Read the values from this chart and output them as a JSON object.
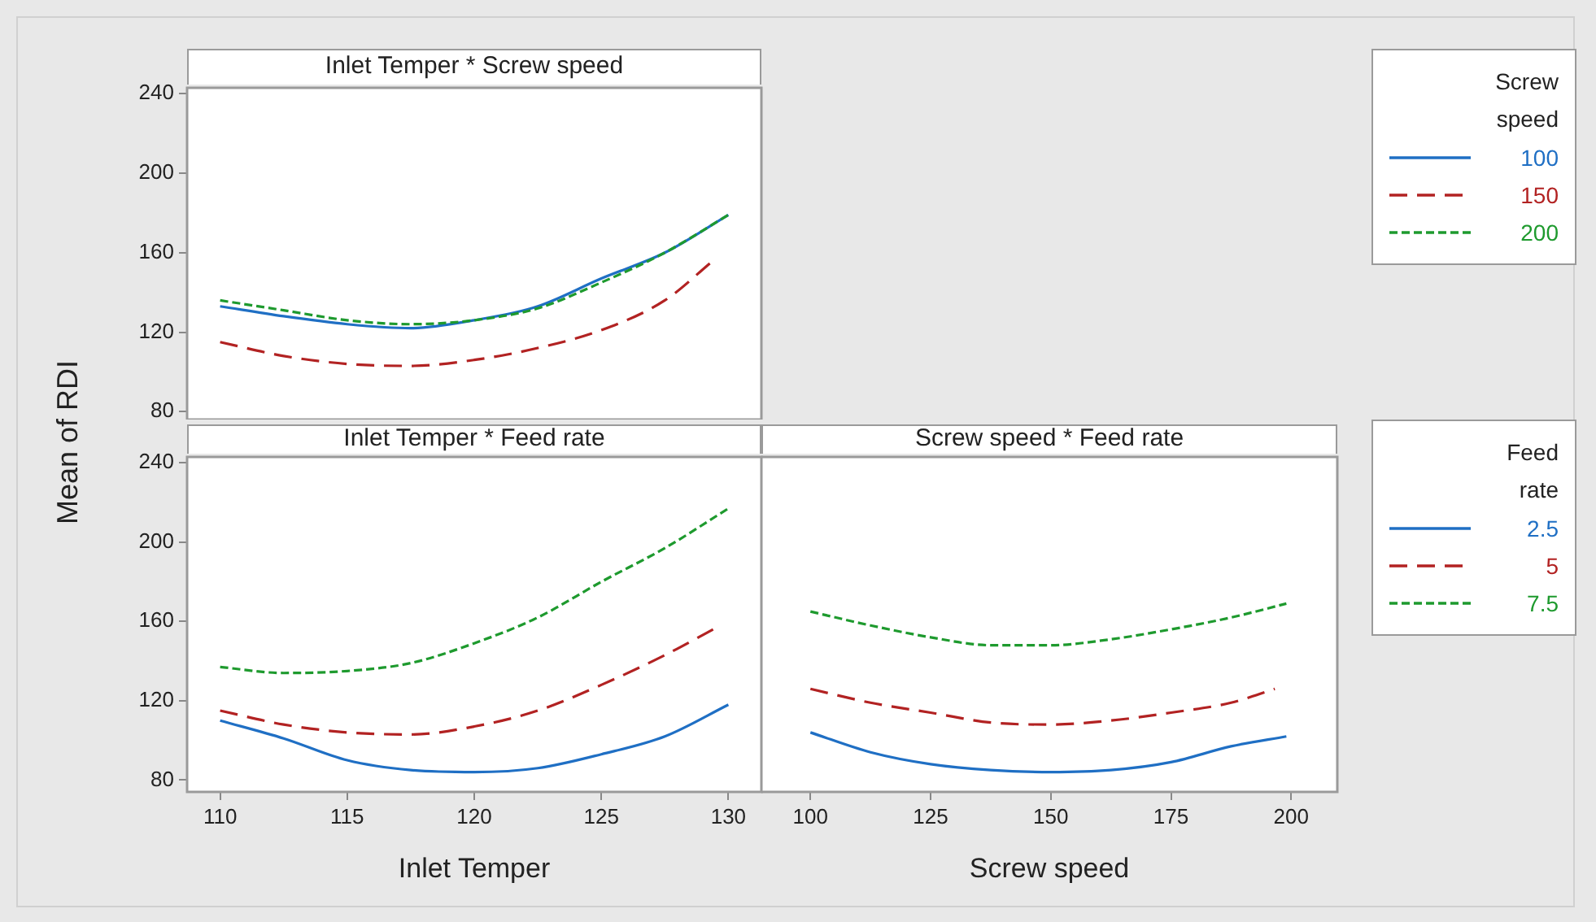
{
  "chart_data": [
    {
      "type": "line",
      "title": "Inlet Temper * Screw speed",
      "ylabel": "Mean of RDI",
      "legend_title": "Screw speed",
      "legend": "right",
      "tick_labels": "y",
      "xlim": [
        108.7,
        131.3
      ],
      "xticks": [
        110,
        115,
        120,
        125,
        130
      ],
      "ylim": [
        76,
        243
      ],
      "yticks": [
        80,
        120,
        160,
        200,
        240
      ],
      "series": [
        {
          "name": "100",
          "color": "#1f6fc4",
          "line_style": "solid",
          "x": [
            110,
            112.5,
            115,
            117.5,
            120,
            122.5,
            125,
            127.5,
            130
          ],
          "values": [
            133,
            128,
            124,
            122,
            126,
            133,
            147,
            160,
            179
          ]
        },
        {
          "name": "150",
          "color": "#b22222",
          "line_style": "dashed",
          "x": [
            110,
            112.5,
            115,
            117.5,
            120,
            122.5,
            125,
            127.5,
            129.4
          ],
          "values": [
            115,
            108,
            104,
            103,
            106,
            112,
            121,
            136,
            156
          ]
        },
        {
          "name": "200",
          "color": "#1e9a2e",
          "line_style": "dotted",
          "x": [
            110,
            112.5,
            115,
            117.5,
            120,
            122.5,
            125,
            127.5,
            130
          ],
          "values": [
            136,
            131,
            126,
            124,
            126,
            132,
            145,
            160,
            179
          ]
        }
      ]
    },
    {
      "type": "line",
      "title": "Inlet Temper * Feed rate",
      "xlabel": "Inlet Temper",
      "xlim": [
        108.7,
        131.3
      ],
      "xticks": [
        110,
        115,
        120,
        125,
        130
      ],
      "ylim": [
        74,
        243
      ],
      "yticks": [
        80,
        120,
        160,
        200,
        240
      ],
      "series": [
        {
          "color": "#1f6fc4",
          "line_style": "solid",
          "x": [
            110,
            112.5,
            115,
            117.5,
            120,
            122.5,
            125,
            127.5,
            130
          ],
          "values": [
            110,
            101,
            90,
            85,
            84,
            86,
            93,
            102,
            118
          ]
        },
        {
          "color": "#b22222",
          "line_style": "dashed",
          "x": [
            110,
            112.5,
            115,
            117.5,
            120,
            122.5,
            125,
            127.5,
            129.4
          ],
          "values": [
            115,
            108,
            104,
            103,
            107,
            115,
            128,
            143,
            156
          ]
        },
        {
          "color": "#1e9a2e",
          "line_style": "dotted",
          "x": [
            110,
            112.5,
            115,
            117.5,
            120,
            122.5,
            125,
            127.5,
            130
          ],
          "values": [
            137,
            134,
            135,
            139,
            149,
            162,
            180,
            197,
            217
          ]
        }
      ]
    },
    {
      "type": "line",
      "title": "Screw speed * Feed rate",
      "xlabel": "Screw speed",
      "legend_title": "Feed rate",
      "legend": "right",
      "tick_labels": "x",
      "xlim": [
        89.8,
        209.6
      ],
      "xticks": [
        100,
        125,
        150,
        175,
        200
      ],
      "ylim": [
        74,
        243
      ],
      "yticks": [
        80,
        120,
        160,
        200,
        240
      ],
      "series": [
        {
          "name": "2.5",
          "color": "#1f6fc4",
          "line_style": "solid",
          "x": [
            100,
            112.5,
            125,
            137.5,
            150,
            162.5,
            175,
            187.5,
            199
          ],
          "values": [
            104,
            94,
            88,
            85,
            84,
            85,
            89,
            97,
            102
          ]
        },
        {
          "name": "5",
          "color": "#b22222",
          "line_style": "dashed",
          "x": [
            100,
            112.5,
            125,
            137.5,
            150,
            162.5,
            175,
            187.5,
            196.6
          ],
          "values": [
            126,
            119,
            114,
            109,
            108,
            110,
            114,
            119,
            126
          ]
        },
        {
          "name": "7.5",
          "color": "#1e9a2e",
          "line_style": "dotted",
          "x": [
            100,
            112.5,
            125,
            137.5,
            150,
            162.5,
            175,
            187.5,
            199
          ],
          "values": [
            165,
            158,
            152,
            148,
            148,
            151,
            156,
            162,
            169
          ]
        }
      ]
    }
  ]
}
